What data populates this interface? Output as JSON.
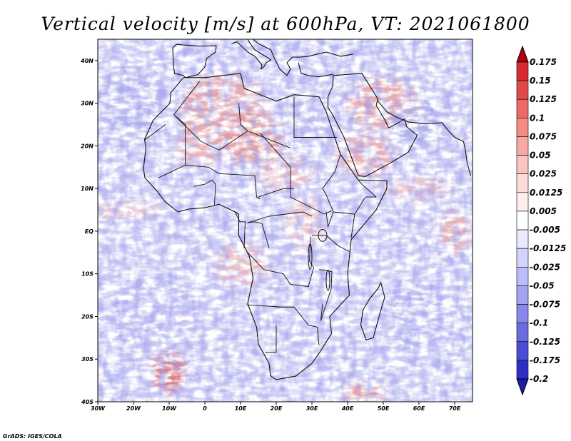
{
  "chart_data": {
    "type": "heatmap",
    "title": "Vertical velocity [m/s] at 600hPa, VT: 2021061800",
    "variable": "Vertical velocity",
    "units": "m/s",
    "level": "600hPa",
    "valid_time": "2021061800",
    "xlabel": "",
    "ylabel": "",
    "xlim": [
      -30,
      75
    ],
    "ylim": [
      -40,
      45
    ],
    "x_ticks": [
      {
        "value": -30,
        "label": "30W"
      },
      {
        "value": -20,
        "label": "20W"
      },
      {
        "value": -10,
        "label": "10W"
      },
      {
        "value": 0,
        "label": "0"
      },
      {
        "value": 10,
        "label": "10E"
      },
      {
        "value": 20,
        "label": "20E"
      },
      {
        "value": 30,
        "label": "30E"
      },
      {
        "value": 40,
        "label": "40E"
      },
      {
        "value": 50,
        "label": "50E"
      },
      {
        "value": 60,
        "label": "60E"
      },
      {
        "value": 70,
        "label": "70E"
      }
    ],
    "y_ticks": [
      {
        "value": -40,
        "label": "40S"
      },
      {
        "value": -30,
        "label": "30S"
      },
      {
        "value": -20,
        "label": "20S"
      },
      {
        "value": -10,
        "label": "10S"
      },
      {
        "value": 0,
        "label": "EQ"
      },
      {
        "value": 10,
        "label": "10N"
      },
      {
        "value": 20,
        "label": "20N"
      },
      {
        "value": 30,
        "label": "30N"
      },
      {
        "value": 40,
        "label": "40N"
      }
    ],
    "colorbar": {
      "levels": [
        {
          "value": 0.175,
          "label": "0.175",
          "color": "#c4141f"
        },
        {
          "value": 0.15,
          "label": "0.15",
          "color": "#d42a30"
        },
        {
          "value": 0.125,
          "label": "0.125",
          "color": "#e24a4a"
        },
        {
          "value": 0.1,
          "label": "0.1",
          "color": "#ec6a66"
        },
        {
          "value": 0.075,
          "label": "0.075",
          "color": "#f38a84"
        },
        {
          "value": 0.05,
          "label": "0.05",
          "color": "#f7a8a3"
        },
        {
          "value": 0.025,
          "label": "0.025",
          "color": "#fac4c0"
        },
        {
          "value": 0.0125,
          "label": "0.0125",
          "color": "#fcdcd9"
        },
        {
          "value": 0.005,
          "label": "0.005",
          "color": "#feeeec"
        },
        {
          "value": -0.005,
          "label": "-0.005",
          "color": "#ffffff"
        },
        {
          "value": -0.0125,
          "label": "-0.0125",
          "color": "#e9e9ff"
        },
        {
          "value": -0.025,
          "label": "-0.025",
          "color": "#d3d3fc"
        },
        {
          "value": -0.05,
          "label": "-0.05",
          "color": "#bcbcf8"
        },
        {
          "value": -0.075,
          "label": "-0.075",
          "color": "#a3a3f2"
        },
        {
          "value": -0.1,
          "label": "-0.1",
          "color": "#8888ea"
        },
        {
          "value": -0.125,
          "label": "-0.125",
          "color": "#6b6be0"
        },
        {
          "value": -0.175,
          "label": "-0.175",
          "color": "#4c4cd2"
        },
        {
          "value": -0.2,
          "label": "-0.2",
          "color": "#2e2ec0"
        }
      ],
      "over_color": "#b00010",
      "under_color": "#1c1caa"
    },
    "background_color": "#cdcdf5",
    "credit": "GrADS: IGES/COLA"
  }
}
